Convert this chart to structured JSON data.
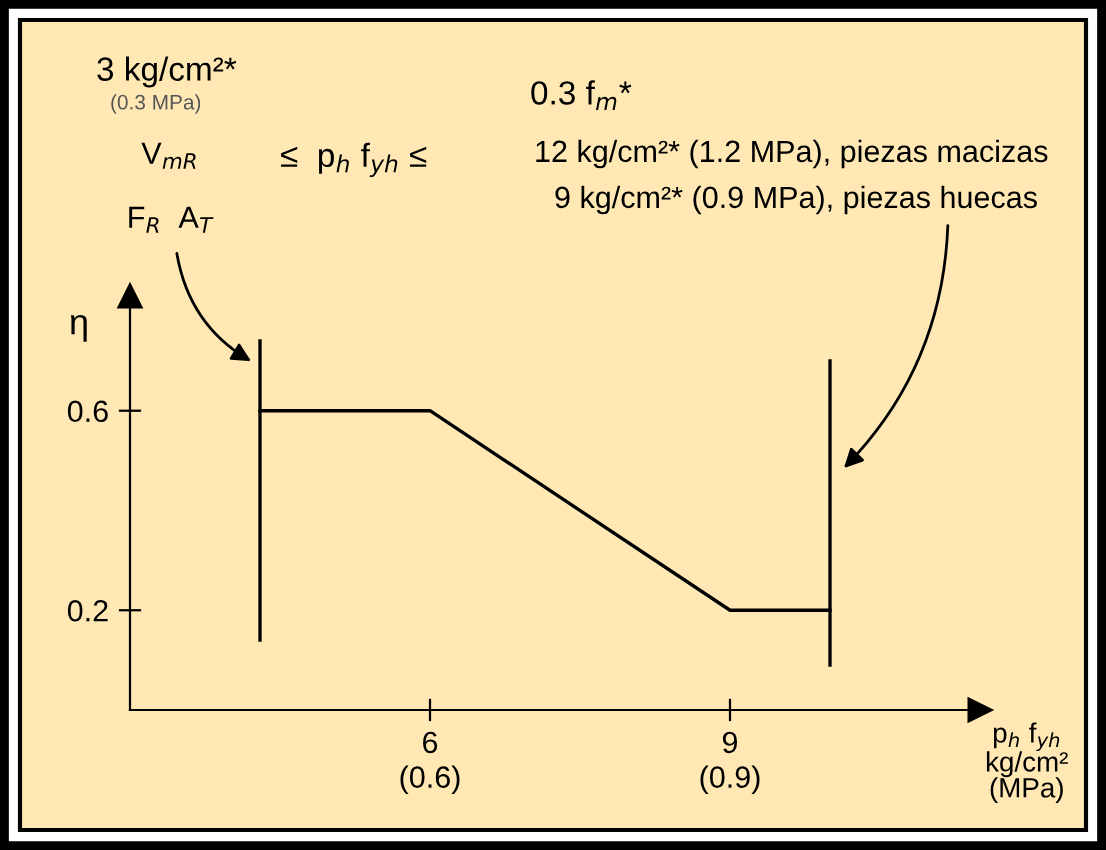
{
  "chart_data": {
    "type": "line",
    "xlabel": "p$_{h}$ f$_{yh}$\nkg/cm²\n(MPa)",
    "ylabel": "η",
    "annotations": [
      "3 kg/cm²*",
      "(0.3 MPa)",
      "V$_{mR}$",
      "F$_{R}$  A$_{T}$",
      "≤  p$_{h}$ f$_{yh}$ ≤",
      "0.3 f$_{m}$*",
      "12 kg/cm²* (1.2 MPa), piezas macizas",
      "9 kg/cm²* (0.9 MPa), piezas huecas"
    ],
    "series": [
      {
        "x": [
          4.3,
          6,
          9,
          10
        ],
        "values": [
          0.6,
          0.6,
          0.2,
          0.2
        ],
        "color": "#000000"
      },
      {
        "x": [
          4.3,
          4.3
        ],
        "values": [
          0.14,
          0.74
        ],
        "color": "#000000"
      },
      {
        "x": [
          10,
          10
        ],
        "values": [
          0.09,
          0.7
        ],
        "color": "#000000"
      }
    ],
    "xlim": [
      3,
      11.5
    ],
    "ylim": [
      0,
      0.83
    ],
    "xticks": [
      6,
      9
    ],
    "x2lim": [
      0.3,
      1.15
    ],
    "x2ticks": [
      {
        "value": 0.6,
        "label": "(0.6)"
      },
      {
        "value": 0.9,
        "label": "(0.9)"
      }
    ],
    "yticks": [
      0.2,
      0.6
    ],
    "grid": false,
    "legend": false,
    "marker": "none",
    "line_style": "solid"
  }
}
